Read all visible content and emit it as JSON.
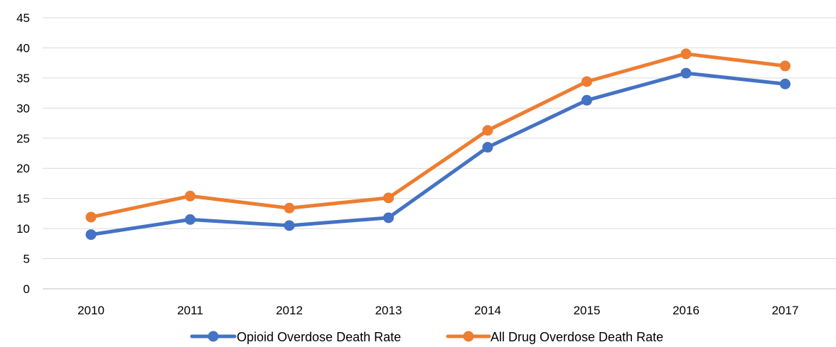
{
  "chart_data": {
    "type": "line",
    "title": "",
    "xlabel": "",
    "ylabel": "",
    "categories": [
      "2010",
      "2011",
      "2012",
      "2013",
      "2014",
      "2015",
      "2016",
      "2017"
    ],
    "ylim": [
      0,
      45
    ],
    "yticks": [
      "0",
      "5",
      "10",
      "15",
      "20",
      "25",
      "30",
      "35",
      "40",
      "45"
    ],
    "grid": true,
    "legend_position": "bottom",
    "series": [
      {
        "name": "Opioid Overdose Death Rate",
        "color": "#4472c4",
        "values": [
          9.0,
          11.5,
          10.5,
          11.8,
          23.5,
          31.3,
          35.8,
          34.0
        ]
      },
      {
        "name": "All Drug Overdose Death Rate",
        "color": "#ed7d31",
        "values": [
          11.9,
          15.4,
          13.4,
          15.1,
          26.3,
          34.4,
          39.0,
          37.0
        ]
      }
    ]
  }
}
